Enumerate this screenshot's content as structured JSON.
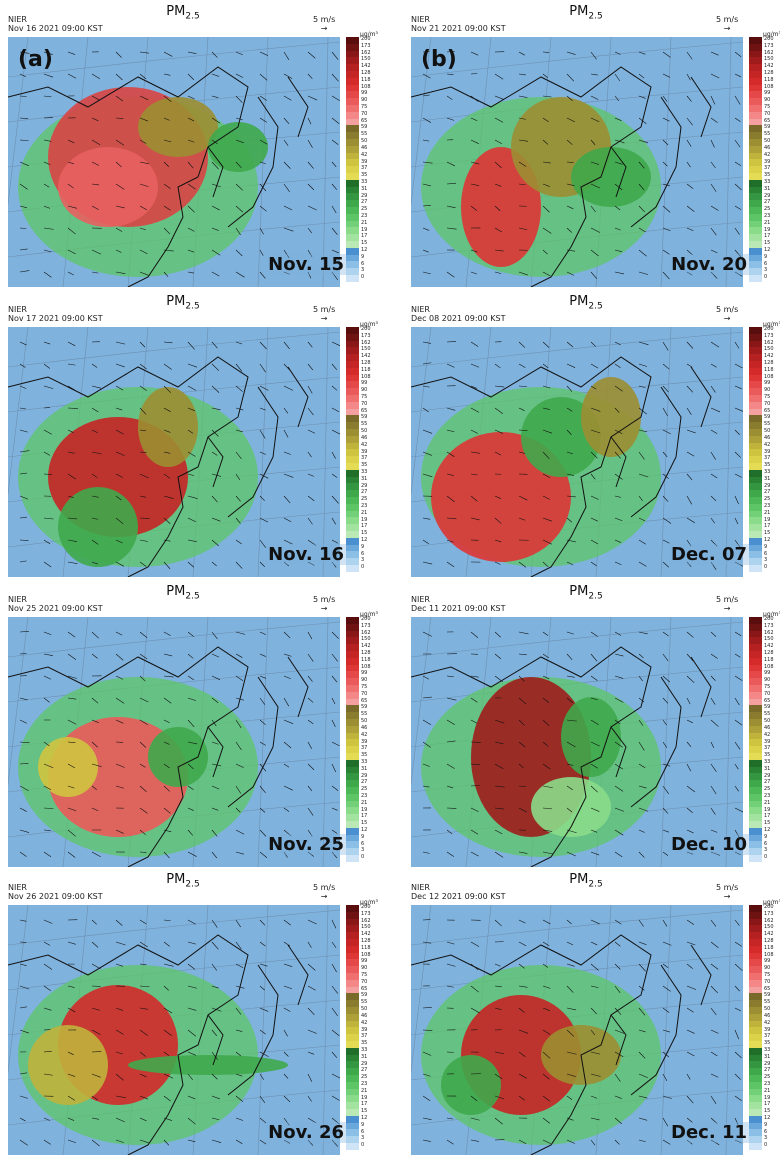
{
  "title_main": "PM",
  "title_sub": "2.5",
  "source": "NIER",
  "vector_ref": "5 m/s",
  "vector_arrow": "→",
  "unit": "µg/m³",
  "colorbar_ticks": [
    "200",
    "173",
    "162",
    "150",
    "142",
    "128",
    "118",
    "108",
    "99",
    "90",
    "75",
    "70",
    "65",
    "59",
    "55",
    "50",
    "46",
    "42",
    "39",
    "37",
    "35",
    "33",
    "31",
    "29",
    "27",
    "25",
    "23",
    "21",
    "19",
    "17",
    "15",
    "12",
    "9",
    "6",
    "3",
    "0"
  ],
  "colorbar_colors": [
    "#5a0d0d",
    "#6e1212",
    "#8a1717",
    "#a01c1c",
    "#b52020",
    "#c62525",
    "#d42a2a",
    "#de3535",
    "#e54848",
    "#eb5a5a",
    "#f07070",
    "#f48888",
    "#f5a0a0",
    "#7a6a2a",
    "#8a7c2e",
    "#9c8e32",
    "#aea038",
    "#bfb33c",
    "#cfc440",
    "#dcd24a",
    "#e5dc55",
    "#1f6e2a",
    "#2a8235",
    "#349640",
    "#3fa84b",
    "#4cb858",
    "#5ec566",
    "#72d078",
    "#8adb8a",
    "#a2e3a0",
    "#bae9b6",
    "#4a8fd0",
    "#6aa8dc",
    "#8cbfe6",
    "#aed3ef",
    "#cfe4f6"
  ],
  "panels": [
    {
      "label": "(a)",
      "timestamp": "Nov 16 2021 09:00 KST",
      "date": "Nov. 15"
    },
    {
      "label": "(b)",
      "timestamp": "Nov 21 2021 09:00 KST",
      "date": "Nov. 20"
    },
    {
      "label": "",
      "timestamp": "Nov 17 2021 09:00 KST",
      "date": "Nov. 16"
    },
    {
      "label": "",
      "timestamp": "Dec 08 2021 09:00 KST",
      "date": "Dec. 07"
    },
    {
      "label": "",
      "timestamp": "Nov 25 2021 09:00 KST",
      "date": "Nov. 25"
    },
    {
      "label": "",
      "timestamp": "Dec 11 2021 09:00 KST",
      "date": "Dec. 10"
    },
    {
      "label": "",
      "timestamp": "Nov 26 2021 09:00 KST",
      "date": "Nov. 26"
    },
    {
      "label": "",
      "timestamp": "Dec 12 2021 09:00 KST",
      "date": "Dec. 11"
    }
  ]
}
